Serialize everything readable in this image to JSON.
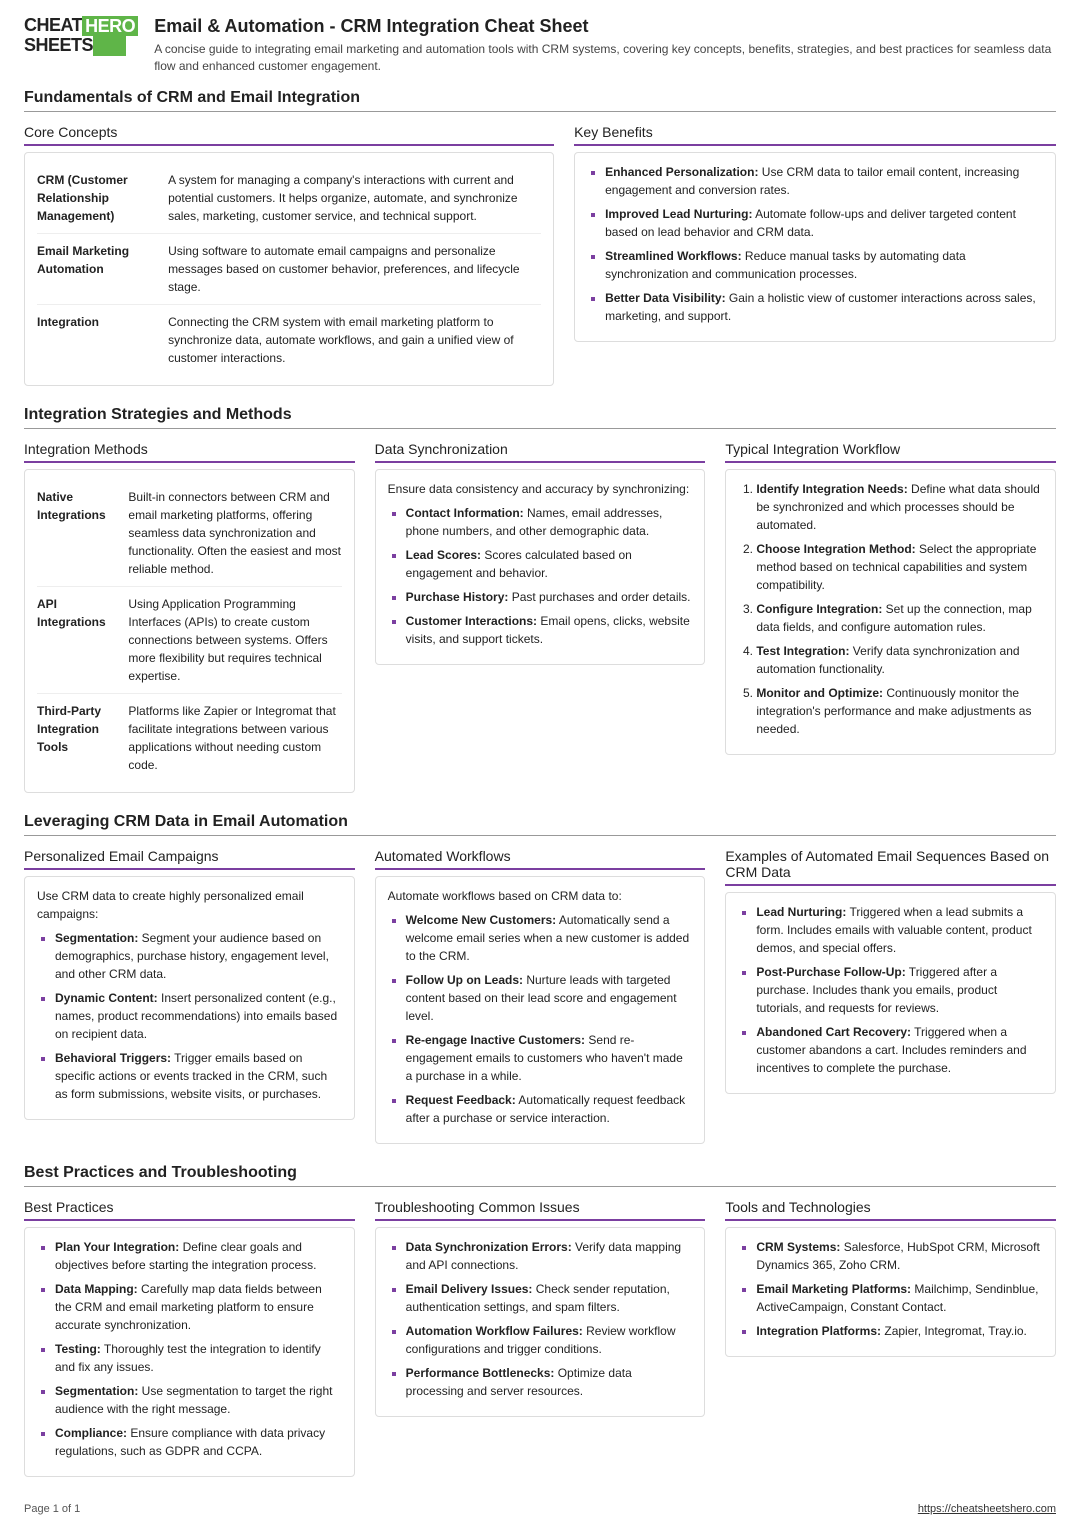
{
  "logo": {
    "a": "CHEAT",
    "b": "HERO",
    "c": "SHEETS"
  },
  "header": {
    "title": "Email & Automation - CRM Integration Cheat Sheet",
    "desc": "A concise guide to integrating email marketing and automation tools with CRM systems, covering key concepts, benefits, strategies, and best practices for seamless data flow and enhanced customer engagement."
  },
  "s1": {
    "title": "Fundamentals of CRM and Email Integration",
    "core": {
      "title": "Core Concepts",
      "rows": [
        {
          "term": "CRM (Customer Relationship Management)",
          "desc": "A system for managing a company's interactions with current and potential customers. It helps organize, automate, and synchronize sales, marketing, customer service, and technical support."
        },
        {
          "term": "Email Marketing Automation",
          "desc": "Using software to automate email campaigns and personalize messages based on customer behavior, preferences, and lifecycle stage."
        },
        {
          "term": "Integration",
          "desc": "Connecting the CRM system with email marketing platform to synchronize data, automate workflows, and gain a unified view of customer interactions."
        }
      ]
    },
    "benefits": {
      "title": "Key Benefits",
      "items": [
        {
          "b": "Enhanced Personalization:",
          "t": " Use CRM data to tailor email content, increasing engagement and conversion rates."
        },
        {
          "b": "Improved Lead Nurturing:",
          "t": " Automate follow-ups and deliver targeted content based on lead behavior and CRM data."
        },
        {
          "b": "Streamlined Workflows:",
          "t": " Reduce manual tasks by automating data synchronization and communication processes."
        },
        {
          "b": "Better Data Visibility:",
          "t": " Gain a holistic view of customer interactions across sales, marketing, and support."
        }
      ]
    }
  },
  "s2": {
    "title": "Integration Strategies and Methods",
    "methods": {
      "title": "Integration Methods",
      "rows": [
        {
          "term": "Native Integrations",
          "desc": "Built-in connectors between CRM and email marketing platforms, offering seamless data synchronization and functionality. Often the easiest and most reliable method."
        },
        {
          "term": "API Integrations",
          "desc": "Using Application Programming Interfaces (APIs) to create custom connections between systems. Offers more flexibility but requires technical expertise."
        },
        {
          "term": "Third-Party Integration Tools",
          "desc": "Platforms like Zapier or Integromat that facilitate integrations between various applications without needing custom code."
        }
      ]
    },
    "sync": {
      "title": "Data Synchronization",
      "intro": "Ensure data consistency and accuracy by synchronizing:",
      "items": [
        {
          "b": "Contact Information:",
          "t": " Names, email addresses, phone numbers, and other demographic data."
        },
        {
          "b": "Lead Scores:",
          "t": " Scores calculated based on engagement and behavior."
        },
        {
          "b": "Purchase History:",
          "t": " Past purchases and order details."
        },
        {
          "b": "Customer Interactions:",
          "t": " Email opens, clicks, website visits, and support tickets."
        }
      ]
    },
    "workflow": {
      "title": "Typical Integration Workflow",
      "items": [
        {
          "b": "Identify Integration Needs:",
          "t": " Define what data should be synchronized and which processes should be automated."
        },
        {
          "b": "Choose Integration Method:",
          "t": " Select the appropriate method based on technical capabilities and system compatibility."
        },
        {
          "b": "Configure Integration:",
          "t": " Set up the connection, map data fields, and configure automation rules."
        },
        {
          "b": "Test Integration:",
          "t": " Verify data synchronization and automation functionality."
        },
        {
          "b": "Monitor and Optimize:",
          "t": " Continuously monitor the integration's performance and make adjustments as needed."
        }
      ]
    }
  },
  "s3": {
    "title": "Leveraging CRM Data in Email Automation",
    "pers": {
      "title": "Personalized Email Campaigns",
      "intro": "Use CRM data to create highly personalized email campaigns:",
      "items": [
        {
          "b": "Segmentation:",
          "t": " Segment your audience based on demographics, purchase history, engagement level, and other CRM data."
        },
        {
          "b": "Dynamic Content:",
          "t": " Insert personalized content (e.g., names, product recommendations) into emails based on recipient data."
        },
        {
          "b": "Behavioral Triggers:",
          "t": " Trigger emails based on specific actions or events tracked in the CRM, such as form submissions, website visits, or purchases."
        }
      ]
    },
    "auto": {
      "title": "Automated Workflows",
      "intro": "Automate workflows based on CRM data to:",
      "items": [
        {
          "b": "Welcome New Customers:",
          "t": " Automatically send a welcome email series when a new customer is added to the CRM."
        },
        {
          "b": "Follow Up on Leads:",
          "t": " Nurture leads with targeted content based on their lead score and engagement level."
        },
        {
          "b": "Re-engage Inactive Customers:",
          "t": " Send re-engagement emails to customers who haven't made a purchase in a while."
        },
        {
          "b": "Request Feedback:",
          "t": " Automatically request feedback after a purchase or service interaction."
        }
      ]
    },
    "examples": {
      "title": "Examples of Automated Email Sequences Based on CRM Data",
      "items": [
        {
          "b": "Lead Nurturing:",
          "t": " Triggered when a lead submits a form. Includes emails with valuable content, product demos, and special offers."
        },
        {
          "b": "Post-Purchase Follow-Up:",
          "t": " Triggered after a purchase. Includes thank you emails, product tutorials, and requests for reviews."
        },
        {
          "b": "Abandoned Cart Recovery:",
          "t": " Triggered when a customer abandons a cart. Includes reminders and incentives to complete the purchase."
        }
      ]
    }
  },
  "s4": {
    "title": "Best Practices and Troubleshooting",
    "best": {
      "title": "Best Practices",
      "items": [
        {
          "b": "Plan Your Integration:",
          "t": " Define clear goals and objectives before starting the integration process."
        },
        {
          "b": "Data Mapping:",
          "t": " Carefully map data fields between the CRM and email marketing platform to ensure accurate synchronization."
        },
        {
          "b": "Testing:",
          "t": " Thoroughly test the integration to identify and fix any issues."
        },
        {
          "b": "Segmentation:",
          "t": " Use segmentation to target the right audience with the right message."
        },
        {
          "b": "Compliance:",
          "t": " Ensure compliance with data privacy regulations, such as GDPR and CCPA."
        }
      ]
    },
    "trouble": {
      "title": "Troubleshooting Common Issues",
      "items": [
        {
          "b": "Data Synchronization Errors:",
          "t": " Verify data mapping and API connections."
        },
        {
          "b": "Email Delivery Issues:",
          "t": " Check sender reputation, authentication settings, and spam filters."
        },
        {
          "b": "Automation Workflow Failures:",
          "t": " Review workflow configurations and trigger conditions."
        },
        {
          "b": "Performance Bottlenecks:",
          "t": " Optimize data processing and server resources."
        }
      ]
    },
    "tools": {
      "title": "Tools and Technologies",
      "items": [
        {
          "b": "CRM Systems:",
          "t": " Salesforce, HubSpot CRM, Microsoft Dynamics 365, Zoho CRM."
        },
        {
          "b": "Email Marketing Platforms:",
          "t": " Mailchimp, Sendinblue, ActiveCampaign, Constant Contact."
        },
        {
          "b": "Integration Platforms:",
          "t": " Zapier, Integromat, Tray.io."
        }
      ]
    }
  },
  "footer": {
    "page": "Page 1 of 1",
    "url": "https://cheatsheetshero.com"
  }
}
